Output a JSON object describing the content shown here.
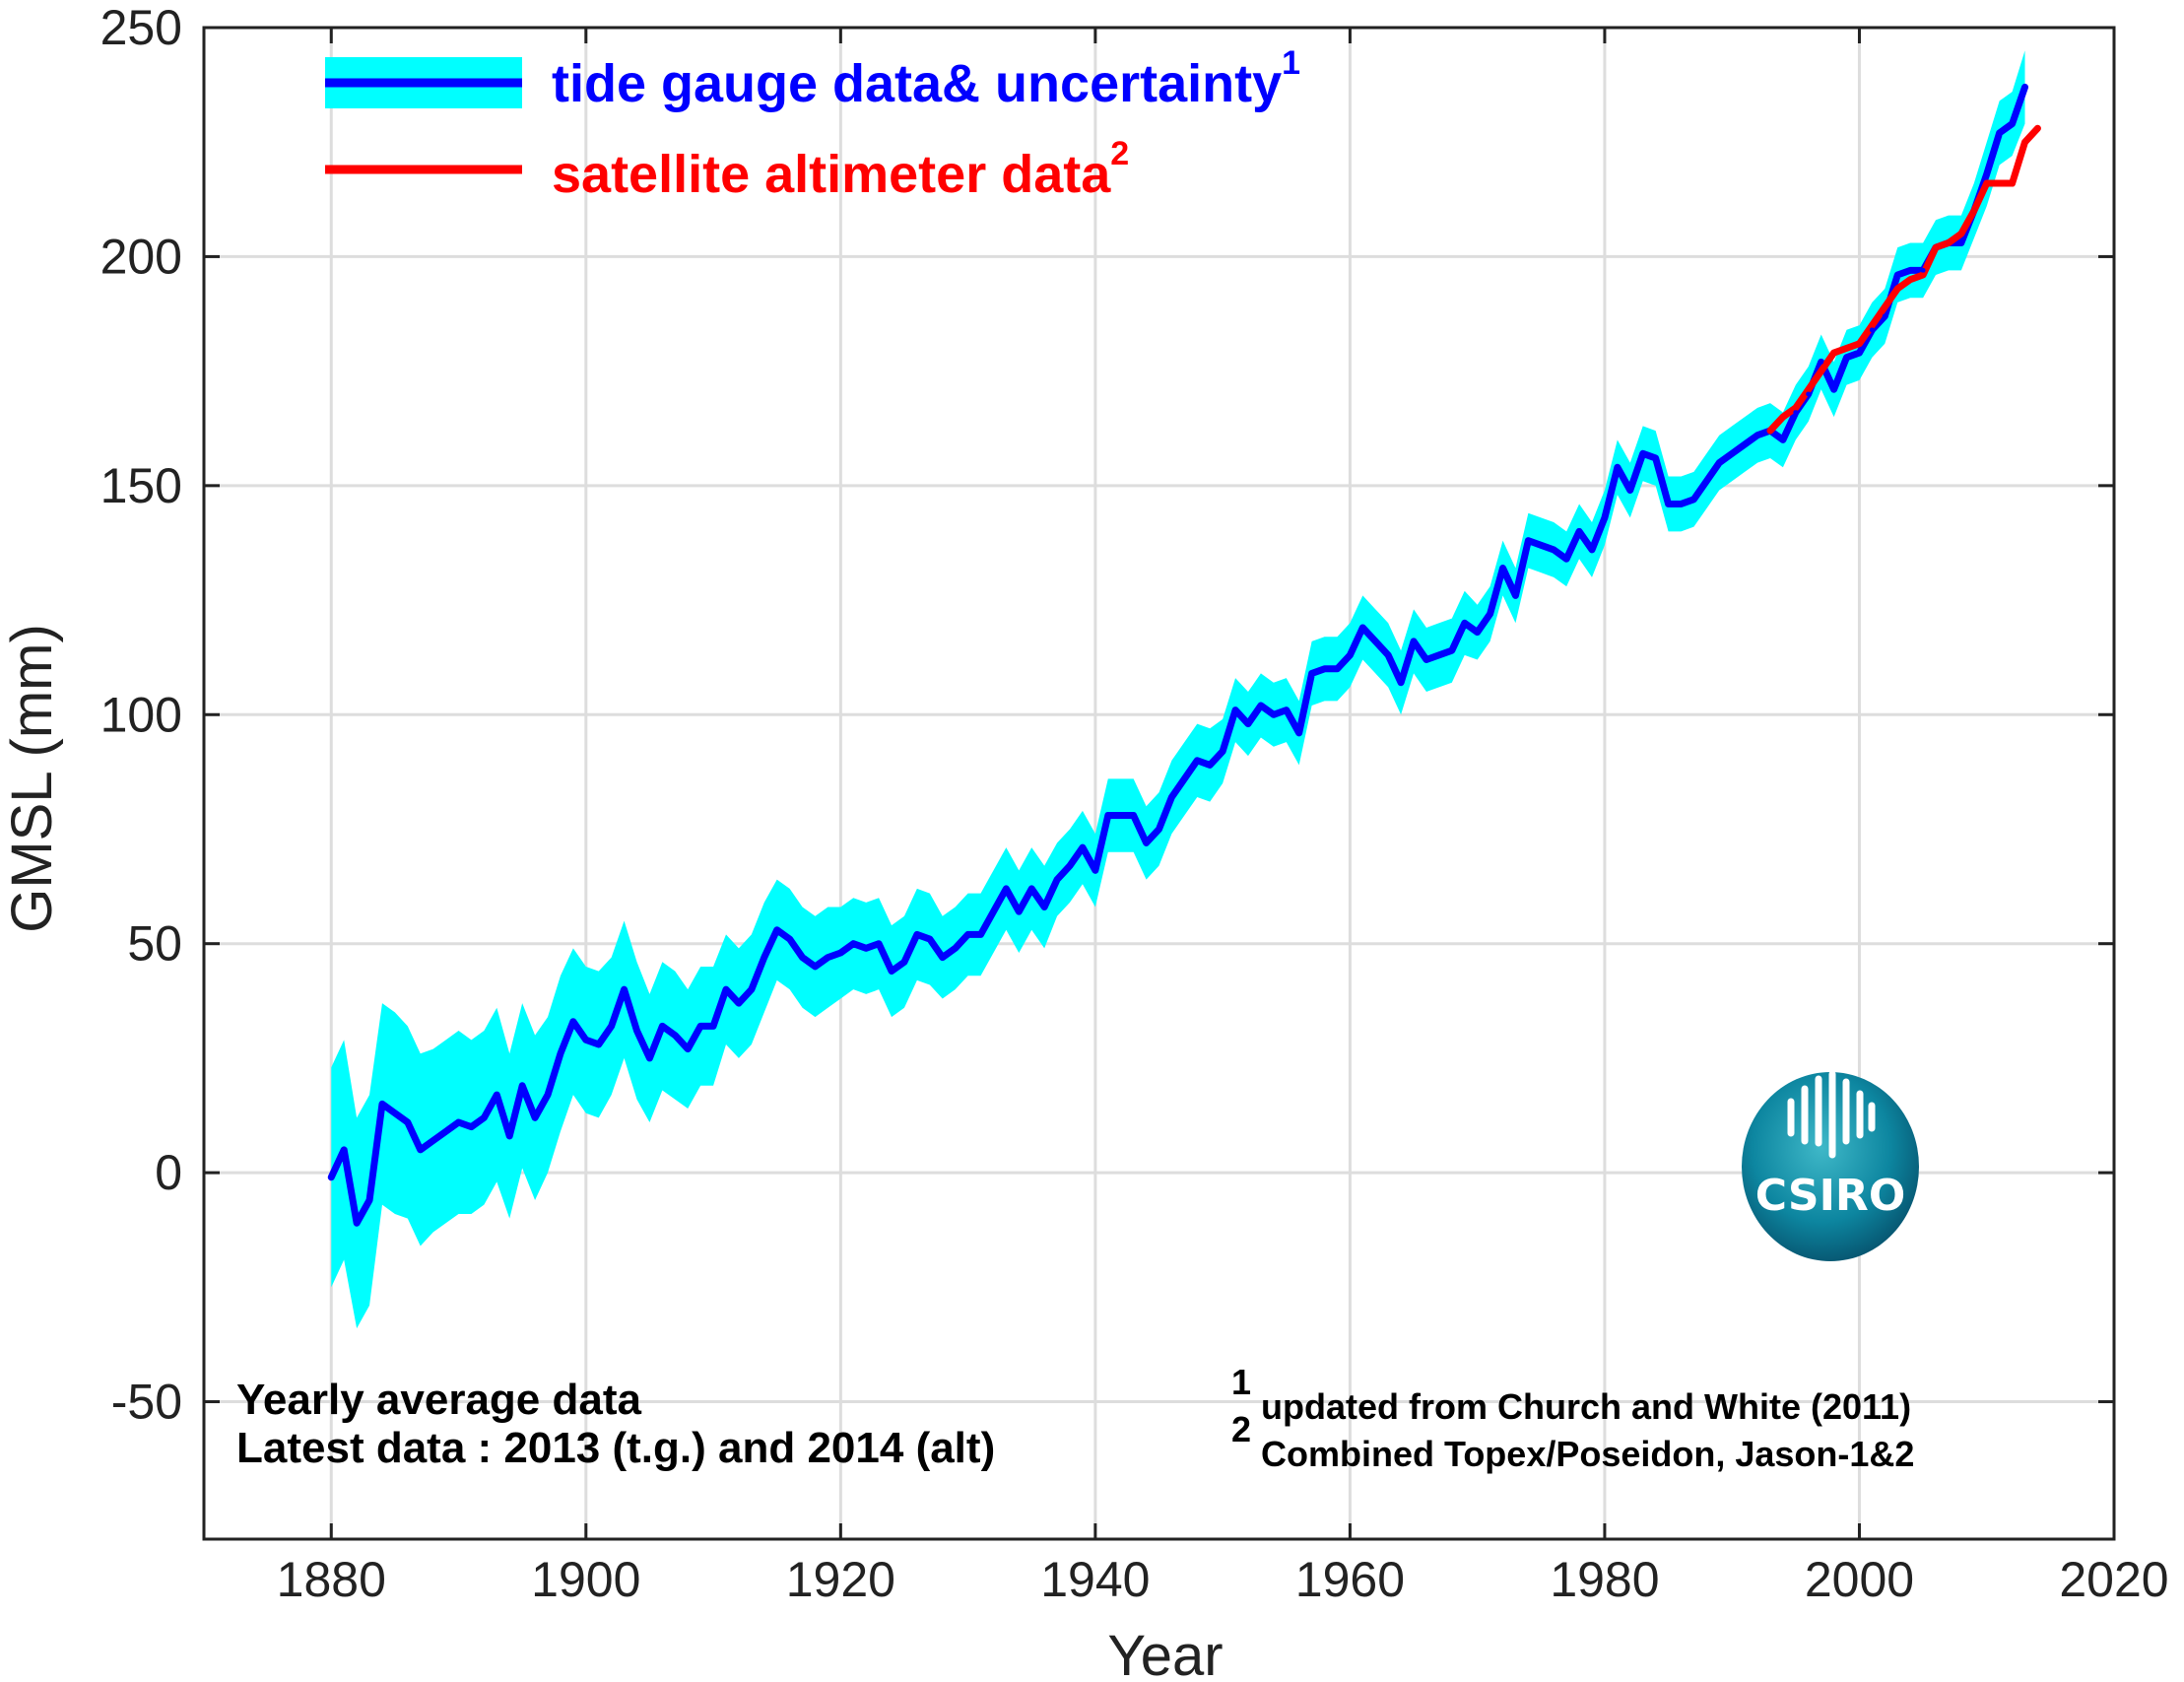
{
  "chart_data": {
    "type": "line",
    "xlabel": "Year",
    "ylabel": "GMSL (mm)",
    "xlim": [
      1870,
      2020
    ],
    "ylim": [
      -80,
      250
    ],
    "xticks": [
      1880,
      1900,
      1920,
      1940,
      1960,
      1980,
      2000,
      2020
    ],
    "yticks": [
      -50,
      0,
      50,
      100,
      150,
      200,
      250
    ],
    "grid": true,
    "legend": {
      "placement": "top-left",
      "entries": [
        {
          "text": "tide gauge data& uncertainty",
          "sup": "1",
          "color": "#0000ff",
          "band_color": "#00ffff"
        },
        {
          "text": "satellite altimeter data",
          "sup": "2",
          "color": "#ff0000"
        }
      ]
    },
    "annotations": {
      "note_line1": "Yearly average data",
      "note_line2": "Latest data : 2013 (t.g.) and 2014 (alt)",
      "ref1_num": "1",
      "ref1_text": "updated from Church and White (2011)",
      "ref2_num": "2",
      "ref2_text": "Combined Topex/Poseidon, Jason-1&2"
    },
    "logo_text": "CSIRO",
    "series": [
      {
        "name": "tide gauge data",
        "color": "#0000ff",
        "x": [
          1880,
          1881,
          1882,
          1883,
          1884,
          1885,
          1886,
          1887,
          1888,
          1889,
          1890,
          1891,
          1892,
          1893,
          1894,
          1895,
          1896,
          1897,
          1898,
          1899,
          1900,
          1901,
          1902,
          1903,
          1904,
          1905,
          1906,
          1907,
          1908,
          1909,
          1910,
          1911,
          1912,
          1913,
          1914,
          1915,
          1916,
          1917,
          1918,
          1919,
          1920,
          1921,
          1922,
          1923,
          1924,
          1925,
          1926,
          1927,
          1928,
          1929,
          1930,
          1931,
          1932,
          1933,
          1934,
          1935,
          1936,
          1937,
          1938,
          1939,
          1940,
          1941,
          1942,
          1943,
          1944,
          1945,
          1946,
          1947,
          1948,
          1949,
          1950,
          1951,
          1952,
          1953,
          1954,
          1955,
          1956,
          1957,
          1958,
          1959,
          1960,
          1961,
          1962,
          1963,
          1964,
          1965,
          1966,
          1967,
          1968,
          1969,
          1970,
          1971,
          1972,
          1973,
          1974,
          1975,
          1976,
          1977,
          1978,
          1979,
          1980,
          1981,
          1982,
          1983,
          1984,
          1985,
          1986,
          1987,
          1988,
          1989,
          1990,
          1991,
          1992,
          1993,
          1994,
          1995,
          1996,
          1997,
          1998,
          1999,
          2000,
          2001,
          2002,
          2003,
          2004,
          2005,
          2006,
          2007,
          2008,
          2009,
          2010,
          2011,
          2012,
          2013
        ],
        "y": [
          -1,
          5,
          -11,
          -6,
          15,
          13,
          11,
          5,
          7,
          9,
          11,
          10,
          12,
          17,
          8,
          19,
          12,
          17,
          26,
          33,
          29,
          28,
          32,
          40,
          31,
          25,
          32,
          30,
          27,
          32,
          32,
          40,
          37,
          40,
          47,
          53,
          51,
          47,
          45,
          47,
          48,
          50,
          49,
          50,
          44,
          46,
          52,
          51,
          47,
          49,
          52,
          52,
          57,
          62,
          57,
          62,
          58,
          64,
          67,
          71,
          66,
          78,
          78,
          78,
          72,
          75,
          82,
          86,
          90,
          89,
          92,
          101,
          98,
          102,
          100,
          101,
          96,
          109,
          110,
          110,
          113,
          119,
          116,
          113,
          107,
          116,
          112,
          113,
          114,
          120,
          118,
          122,
          132,
          126,
          138,
          137,
          136,
          134,
          140,
          136,
          143,
          154,
          149,
          157,
          156,
          146,
          146,
          147,
          151,
          155,
          157,
          159,
          161,
          162,
          160,
          166,
          170,
          177,
          171,
          178,
          179,
          184,
          187,
          196,
          197,
          197,
          202,
          203,
          203,
          210,
          218,
          227,
          229,
          237
        ],
        "uncertainty": [
          24,
          24,
          23,
          23,
          22,
          22,
          21,
          21,
          20,
          20,
          20,
          19,
          19,
          19,
          18,
          18,
          18,
          17,
          17,
          16,
          16,
          16,
          15,
          15,
          15,
          14,
          14,
          14,
          13,
          13,
          13,
          12,
          12,
          12,
          12,
          11,
          11,
          11,
          11,
          11,
          10,
          10,
          10,
          10,
          10,
          10,
          10,
          10,
          9,
          9,
          9,
          9,
          9,
          9,
          9,
          9,
          9,
          8,
          8,
          8,
          8,
          8,
          8,
          8,
          8,
          8,
          8,
          8,
          8,
          8,
          7,
          7,
          7,
          7,
          7,
          7,
          7,
          7,
          7,
          7,
          7,
          7,
          7,
          7,
          7,
          7,
          7,
          7,
          7,
          7,
          6,
          6,
          6,
          6,
          6,
          6,
          6,
          6,
          6,
          6,
          6,
          6,
          6,
          6,
          6,
          6,
          6,
          6,
          6,
          6,
          6,
          6,
          6,
          6,
          6,
          6,
          6,
          6,
          6,
          6,
          6,
          6,
          6,
          6,
          6,
          6,
          6,
          6,
          6,
          6,
          7,
          7,
          7,
          8
        ]
      },
      {
        "name": "satellite altimeter data",
        "color": "#ff0000",
        "x": [
          1993,
          1994,
          1995,
          1996,
          1997,
          1998,
          1999,
          2000,
          2001,
          2002,
          2003,
          2004,
          2005,
          2006,
          2007,
          2008,
          2009,
          2010,
          2011,
          2012,
          2013,
          2014
        ],
        "y": [
          162,
          165,
          167,
          171,
          175,
          179,
          180,
          181,
          185,
          189,
          193,
          195,
          196,
          202,
          203,
          205,
          210,
          216,
          216,
          216,
          225,
          228
        ]
      }
    ]
  }
}
